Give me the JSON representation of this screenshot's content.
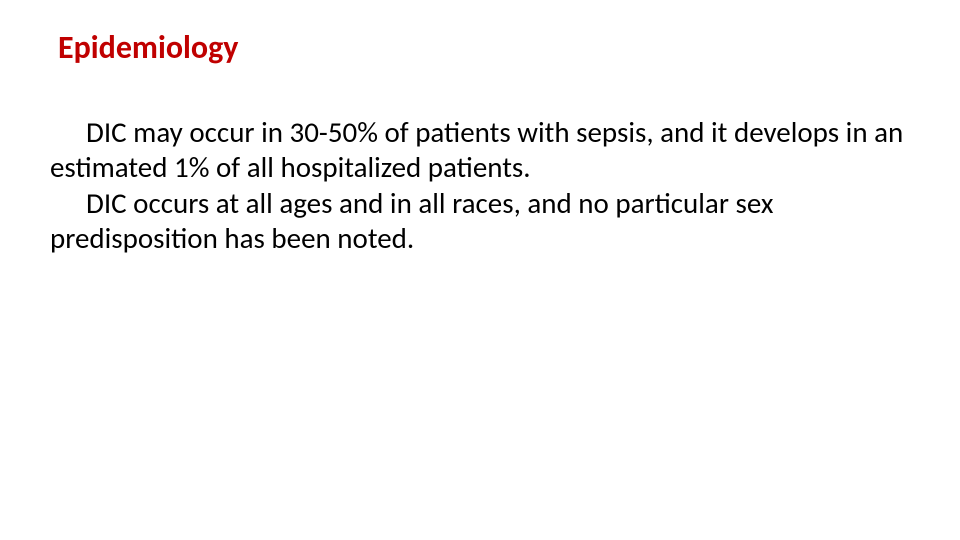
{
  "slide": {
    "heading": {
      "text": "Epidemiology",
      "color": "#c00000",
      "fontsize": 32,
      "fontweight": "bold"
    },
    "paragraphs": [
      "DIC may occur in 30-50% of patients with sepsis, and it develops in an estimated 1% of all hospitalized patients.",
      "DIC occurs at all ages and in all races, and no particular sex predisposition has been noted."
    ],
    "body_style": {
      "color": "#000000",
      "fontsize": 29,
      "text_indent": 36,
      "line_height": 1.22
    },
    "background_color": "#ffffff"
  }
}
